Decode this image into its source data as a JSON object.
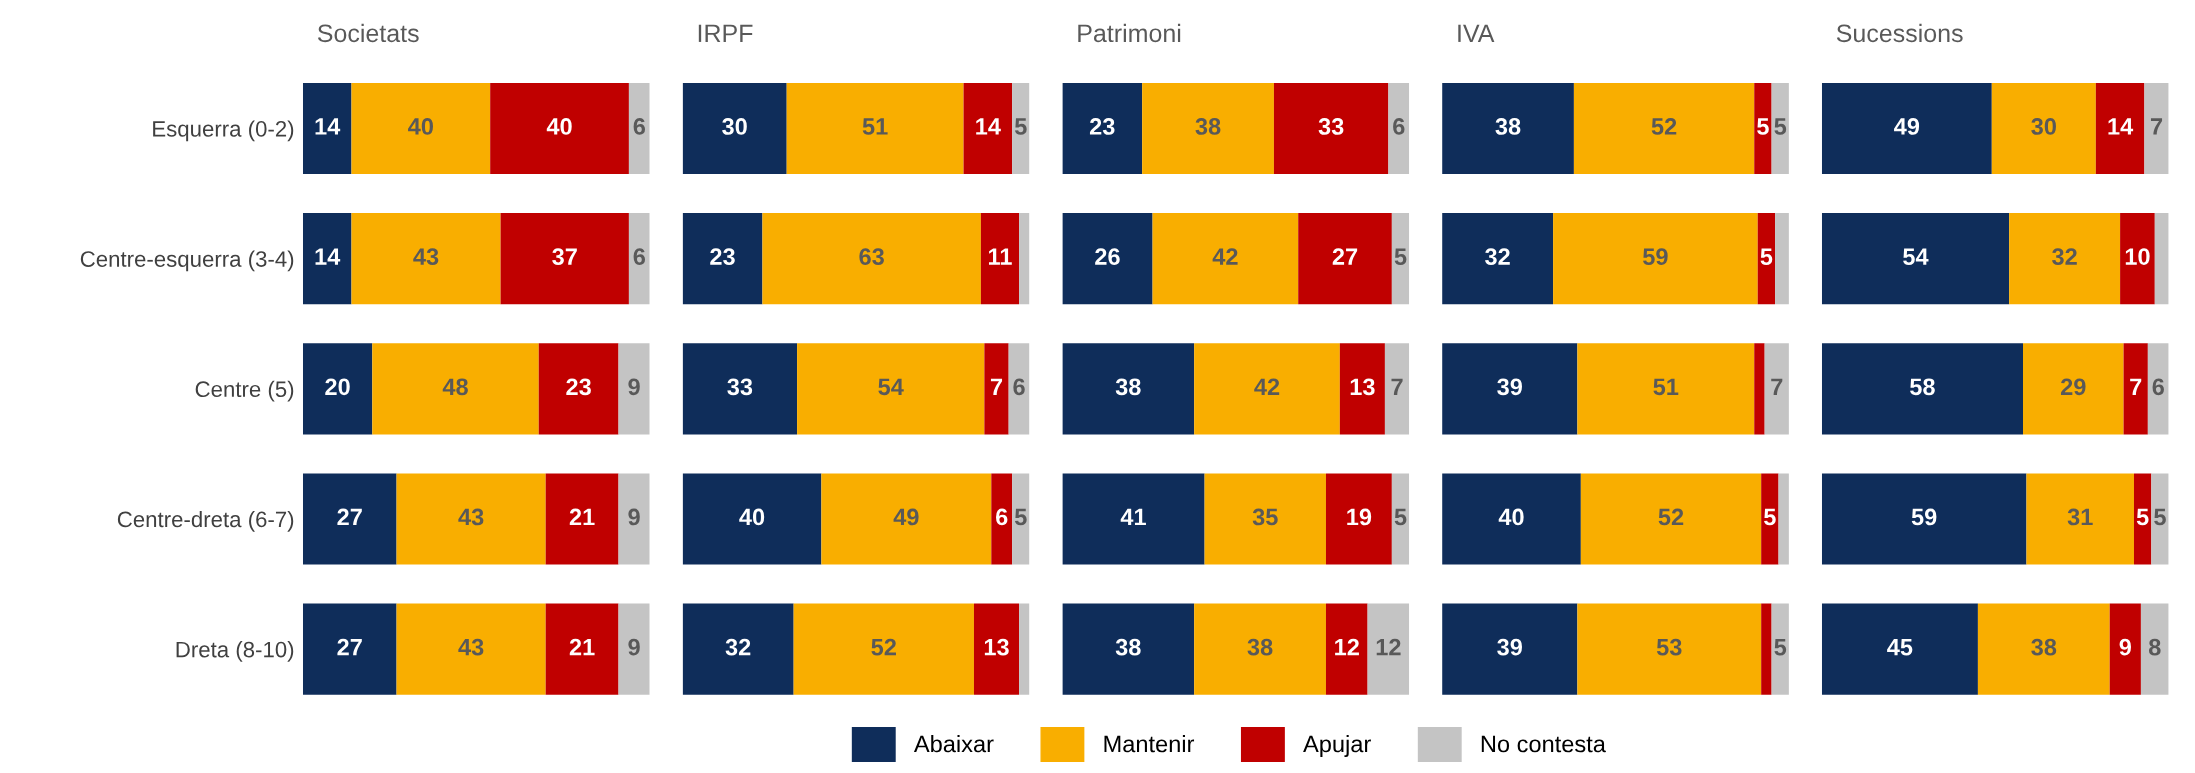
{
  "chart_data": [
    {
      "type": "bar",
      "orientation": "horizontal",
      "stacked": true,
      "title": "Societats",
      "xlim": [
        0,
        100
      ],
      "tick_labels": "y",
      "legend": "bottom",
      "categories": [
        "Esquerra (0-2)",
        "Centre-esquerra (3-4)",
        "Centre (5)",
        "Centre-dreta (6-7)",
        "Dreta (8-10)"
      ],
      "series": [
        {
          "name": "Abaixar",
          "color": "#0f2d5a",
          "values": [
            14,
            14,
            20,
            27,
            27
          ],
          "value_labels": [
            "14",
            "14",
            "20",
            "27",
            "27"
          ]
        },
        {
          "name": "Mantenir",
          "color": "#f9ae00",
          "values": [
            40,
            43,
            48,
            43,
            43
          ],
          "value_labels": [
            "40",
            "43",
            "48",
            "43",
            "43"
          ]
        },
        {
          "name": "Apujar",
          "color": "#c00000",
          "values": [
            40,
            37,
            23,
            21,
            21
          ],
          "value_labels": [
            "40",
            "37",
            "23",
            "21",
            "21"
          ]
        },
        {
          "name": "No contesta",
          "color": "#c4c4c4",
          "values": [
            6,
            6,
            9,
            9,
            9
          ],
          "value_labels": [
            "6",
            "6",
            "9",
            "9",
            "9"
          ]
        }
      ]
    },
    {
      "type": "bar",
      "orientation": "horizontal",
      "stacked": true,
      "title": "IRPF",
      "xlim": [
        0,
        100
      ],
      "tick_labels": false,
      "categories": [
        null,
        null,
        null,
        null,
        null
      ],
      "series": [
        {
          "color": "#0f2d5a",
          "values": [
            30,
            23,
            33,
            40,
            32
          ],
          "value_labels": [
            "30",
            "23",
            "33",
            "40",
            "32"
          ]
        },
        {
          "color": "#f9ae00",
          "values": [
            51,
            63,
            54,
            49,
            52
          ],
          "value_labels": [
            "51",
            "63",
            "54",
            "49",
            "52"
          ]
        },
        {
          "color": "#c00000",
          "values": [
            14,
            11,
            7,
            6,
            13
          ],
          "value_labels": [
            "14",
            "11",
            "7",
            "6",
            "13"
          ]
        },
        {
          "color": "#c4c4c4",
          "values": [
            5,
            3,
            6,
            5,
            3
          ],
          "value_labels": [
            "5",
            null,
            "6",
            "5",
            null
          ]
        }
      ]
    },
    {
      "type": "bar",
      "orientation": "horizontal",
      "stacked": true,
      "title": "Patrimoni",
      "xlim": [
        0,
        100
      ],
      "tick_labels": false,
      "categories": [
        null,
        null,
        null,
        null,
        null
      ],
      "series": [
        {
          "color": "#0f2d5a",
          "values": [
            23,
            26,
            38,
            41,
            38
          ],
          "value_labels": [
            "23",
            "26",
            "38",
            "41",
            "38"
          ]
        },
        {
          "color": "#f9ae00",
          "values": [
            38,
            42,
            42,
            35,
            38
          ],
          "value_labels": [
            "38",
            "42",
            "42",
            "35",
            "38"
          ]
        },
        {
          "color": "#c00000",
          "values": [
            33,
            27,
            13,
            19,
            12
          ],
          "value_labels": [
            "33",
            "27",
            "13",
            "19",
            "12"
          ]
        },
        {
          "color": "#c4c4c4",
          "values": [
            6,
            5,
            7,
            5,
            12
          ],
          "value_labels": [
            "6",
            "5",
            "7",
            "5",
            "12"
          ]
        }
      ]
    },
    {
      "type": "bar",
      "orientation": "horizontal",
      "stacked": true,
      "title": "IVA",
      "xlim": [
        0,
        100
      ],
      "tick_labels": false,
      "categories": [
        null,
        null,
        null,
        null,
        null
      ],
      "series": [
        {
          "color": "#0f2d5a",
          "values": [
            38,
            32,
            39,
            40,
            39
          ],
          "value_labels": [
            "38",
            "32",
            "39",
            "40",
            "39"
          ]
        },
        {
          "color": "#f9ae00",
          "values": [
            52,
            59,
            51,
            52,
            53
          ],
          "value_labels": [
            "52",
            "59",
            "51",
            "52",
            "53"
          ]
        },
        {
          "color": "#c00000",
          "values": [
            5,
            5,
            3,
            5,
            3
          ],
          "value_labels": [
            "5",
            "5",
            null,
            "5",
            null
          ]
        },
        {
          "color": "#c4c4c4",
          "values": [
            5,
            4,
            7,
            3,
            5
          ],
          "value_labels": [
            "5",
            null,
            "7",
            null,
            "5"
          ]
        }
      ]
    },
    {
      "type": "bar",
      "orientation": "horizontal",
      "stacked": true,
      "title": "Sucessions",
      "xlim": [
        0,
        100
      ],
      "tick_labels": false,
      "categories": [
        null,
        null,
        null,
        null,
        null
      ],
      "series": [
        {
          "color": "#0f2d5a",
          "values": [
            49,
            54,
            58,
            59,
            45
          ],
          "value_labels": [
            "49",
            "54",
            "58",
            "59",
            "45"
          ]
        },
        {
          "color": "#f9ae00",
          "values": [
            30,
            32,
            29,
            31,
            38
          ],
          "value_labels": [
            "30",
            "32",
            "29",
            "31",
            "38"
          ]
        },
        {
          "color": "#c00000",
          "values": [
            14,
            10,
            7,
            5,
            9
          ],
          "value_labels": [
            "14",
            "10",
            "7",
            "5",
            "9"
          ]
        },
        {
          "color": "#c4c4c4",
          "values": [
            7,
            4,
            6,
            5,
            8
          ],
          "value_labels": [
            "7",
            null,
            "6",
            "5",
            "8"
          ]
        }
      ]
    }
  ]
}
